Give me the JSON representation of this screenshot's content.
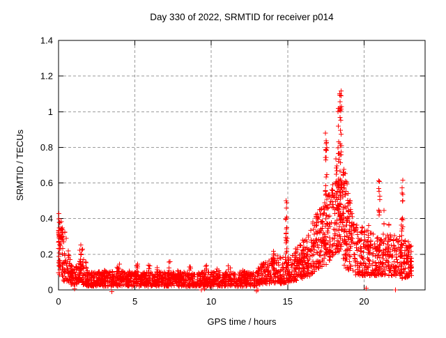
{
  "page": {
    "background": "#ffffff"
  },
  "chart": {
    "title": "Day 330 of 2022, SRMTID for receiver p014",
    "xlabel": "GPS time / hours",
    "ylabel": "SRMTID / TECUs"
  },
  "chart_data": {
    "type": "scatter",
    "title": "Day 330 of 2022, SRMTID for receiver p014",
    "xlabel": "GPS time / hours",
    "ylabel": "SRMTID / TECUs",
    "legend": "none",
    "grid": true,
    "marker": "plus",
    "marker_size_px": 7,
    "marker_color": "#ff0000",
    "axis_color": "#000000",
    "grid_color": "#9a9a9a",
    "xlim": [
      0,
      24
    ],
    "ylim": [
      0,
      1.4
    ],
    "xticks": [
      0,
      5,
      10,
      15,
      20
    ],
    "xtick_labels": [
      "0",
      "5",
      "10",
      "15",
      "20"
    ],
    "yticks": [
      0,
      0.2,
      0.4,
      0.6,
      0.8,
      1,
      1.2,
      1.4
    ],
    "ytick_labels": [
      "0",
      "0.2",
      "0.4",
      "0.6",
      "0.8",
      "1",
      "1.2",
      "1.4"
    ],
    "series_name": "SRMTID",
    "data_span_hours": [
      0,
      23.15
    ],
    "peak": {
      "hour": 18.4,
      "value": 1.21
    },
    "band_segments_format": "[t_start, t_end, n_points, ymin_start, ymin_end, ymax_start, ymax_end, low_bias]",
    "band_segments": [
      [
        0.0,
        0.28,
        48,
        0.08,
        0.06,
        0.46,
        0.36,
        1.0
      ],
      [
        0.28,
        0.8,
        55,
        0.05,
        0.04,
        0.38,
        0.17,
        1.4
      ],
      [
        0.8,
        1.3,
        55,
        0.03,
        0.03,
        0.16,
        0.12,
        1.2
      ],
      [
        1.3,
        1.6,
        40,
        0.04,
        0.04,
        0.14,
        0.27,
        1.5
      ],
      [
        1.6,
        1.95,
        40,
        0.03,
        0.02,
        0.27,
        0.09,
        1.5
      ],
      [
        1.95,
        4.5,
        260,
        0.02,
        0.02,
        0.1,
        0.11,
        1.2
      ],
      [
        4.5,
        13.0,
        780,
        0.02,
        0.02,
        0.1,
        0.1,
        1.2
      ],
      [
        13.0,
        14.4,
        145,
        0.03,
        0.04,
        0.13,
        0.2,
        1.3
      ],
      [
        14.4,
        15.5,
        110,
        0.03,
        0.05,
        0.18,
        0.2,
        1.4
      ],
      [
        15.5,
        16.5,
        130,
        0.05,
        0.08,
        0.24,
        0.32,
        1.3
      ],
      [
        16.5,
        17.4,
        115,
        0.08,
        0.14,
        0.36,
        0.5,
        1.2
      ],
      [
        17.4,
        18.1,
        95,
        0.13,
        0.2,
        0.55,
        0.62,
        1.2
      ],
      [
        18.1,
        18.6,
        85,
        0.2,
        0.22,
        0.6,
        0.62,
        1.1
      ],
      [
        18.6,
        19.4,
        110,
        0.12,
        0.1,
        0.72,
        0.4,
        1.3
      ],
      [
        19.4,
        20.9,
        175,
        0.08,
        0.08,
        0.38,
        0.3,
        1.5
      ],
      [
        20.9,
        22.4,
        150,
        0.08,
        0.08,
        0.33,
        0.3,
        1.4
      ],
      [
        22.4,
        23.15,
        95,
        0.06,
        0.08,
        0.3,
        0.26,
        1.4
      ]
    ],
    "burst_columns_format": "[t_center, width, n_points, ymin, ymax]",
    "burst_columns": [
      [
        0.05,
        0.08,
        16,
        0.1,
        0.44
      ],
      [
        1.42,
        0.08,
        12,
        0.08,
        0.26
      ],
      [
        3.0,
        0.15,
        7,
        0.06,
        0.14
      ],
      [
        3.9,
        0.2,
        8,
        0.06,
        0.15
      ],
      [
        4.7,
        0.15,
        7,
        0.07,
        0.16
      ],
      [
        5.15,
        0.1,
        6,
        0.08,
        0.15
      ],
      [
        5.9,
        0.15,
        6,
        0.07,
        0.14
      ],
      [
        6.5,
        0.2,
        7,
        0.06,
        0.13
      ],
      [
        7.25,
        0.15,
        7,
        0.07,
        0.16
      ],
      [
        7.9,
        0.2,
        6,
        0.06,
        0.13
      ],
      [
        8.6,
        0.15,
        6,
        0.06,
        0.14
      ],
      [
        9.6,
        0.2,
        7,
        0.07,
        0.14
      ],
      [
        10.4,
        0.2,
        6,
        0.06,
        0.13
      ],
      [
        11.2,
        0.2,
        7,
        0.06,
        0.14
      ],
      [
        12.1,
        0.2,
        6,
        0.06,
        0.13
      ],
      [
        14.05,
        0.1,
        10,
        0.08,
        0.22
      ],
      [
        14.92,
        0.1,
        22,
        0.1,
        0.52
      ],
      [
        16.9,
        0.08,
        8,
        0.2,
        0.44
      ],
      [
        17.52,
        0.1,
        24,
        0.25,
        0.9
      ],
      [
        18.2,
        0.07,
        12,
        0.35,
        0.78
      ],
      [
        18.33,
        0.06,
        14,
        0.45,
        1.04
      ],
      [
        18.43,
        0.06,
        18,
        0.5,
        1.21
      ],
      [
        18.5,
        0.05,
        10,
        0.75,
        1.12
      ],
      [
        18.65,
        0.06,
        10,
        0.3,
        0.72
      ],
      [
        19.0,
        0.07,
        8,
        0.2,
        0.5
      ],
      [
        20.3,
        0.1,
        7,
        0.15,
        0.42
      ],
      [
        21.0,
        0.09,
        14,
        0.18,
        0.64
      ],
      [
        21.28,
        0.08,
        10,
        0.15,
        0.5
      ],
      [
        21.6,
        0.1,
        8,
        0.12,
        0.42
      ],
      [
        22.5,
        0.1,
        16,
        0.22,
        0.67
      ],
      [
        22.9,
        0.08,
        8,
        0.08,
        0.3
      ]
    ],
    "near_zero_points": [
      [
        1.05,
        0.005
      ],
      [
        3.5,
        -0.01
      ],
      [
        9.35,
        0.0
      ],
      [
        9.55,
        0.005
      ],
      [
        12.95,
        -0.005
      ],
      [
        13.05,
        0.0
      ],
      [
        20.15,
        0.01
      ],
      [
        22.05,
        0.0
      ]
    ]
  }
}
